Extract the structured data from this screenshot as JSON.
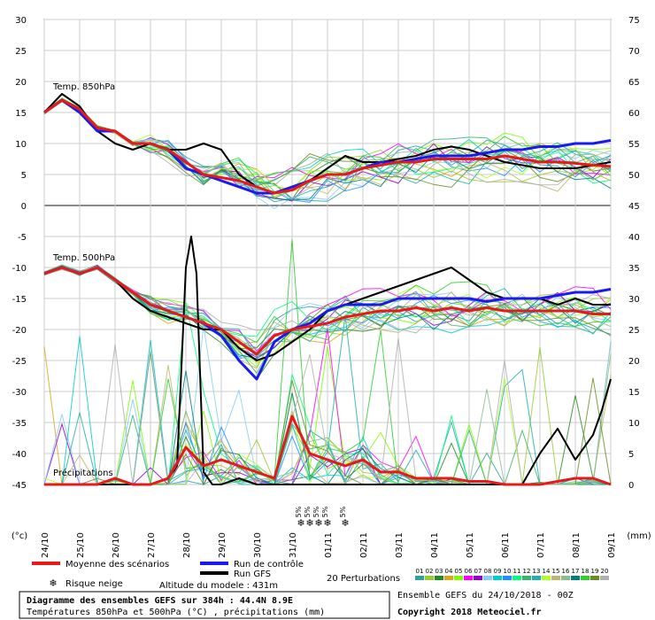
{
  "chart_data": {
    "type": "line",
    "y_left_ticks": [
      "30",
      "25",
      "20",
      "15",
      "10",
      "5",
      "0",
      "-5",
      "-10",
      "-15",
      "-20",
      "-25",
      "-30",
      "-35",
      "-40",
      "-45"
    ],
    "y_right_ticks": [
      "75",
      "70",
      "65",
      "60",
      "55",
      "50",
      "45",
      "40",
      "35",
      "30",
      "25",
      "20",
      "15",
      "10",
      "5",
      "0"
    ],
    "ylim_left": [
      -45,
      30
    ],
    "ylim_right": [
      0,
      75
    ],
    "y_left_unit": "(°c)",
    "y_right_unit": "(mm)",
    "x_ticks": [
      "24/10",
      "25/10",
      "26/10",
      "27/10",
      "28/10",
      "29/10",
      "30/10",
      "31/10",
      "01/11",
      "02/11",
      "03/11",
      "04/11",
      "05/11",
      "06/11",
      "07/11",
      "08/11",
      "09/11"
    ],
    "x_day_range": [
      0,
      16
    ],
    "panel_labels": {
      "t850": "Temp. 850hPa",
      "t500": "Temp. 500hPa",
      "precip": "Précipitations"
    },
    "snow_label": "5%",
    "snow_days": [
      7.25,
      7.5,
      7.75,
      8.0,
      8.5
    ],
    "series": [
      {
        "name": "Moyenne des scénarios",
        "color": "#e61a1a",
        "panel": "t850",
        "x": [
          0,
          0.5,
          1,
          1.5,
          2,
          2.5,
          3,
          3.5,
          4,
          4.5,
          5,
          5.5,
          6,
          6.5,
          7,
          7.5,
          8,
          8.5,
          9,
          9.5,
          10,
          10.5,
          11,
          11.5,
          12,
          12.5,
          13,
          13.5,
          14,
          14.5,
          15,
          15.5,
          16
        ],
        "values": [
          15,
          17,
          15.5,
          12.5,
          12,
          10,
          10,
          9,
          7,
          5,
          4.5,
          4,
          3,
          2,
          2.5,
          4,
          5,
          5,
          6,
          6.5,
          7,
          7,
          7.5,
          7.5,
          7.5,
          7.5,
          8,
          7.5,
          7,
          7,
          6.8,
          6.5,
          6.3
        ]
      },
      {
        "name": "Moyenne des scénarios",
        "color": "#e61a1a",
        "panel": "t500",
        "x": [
          0,
          0.5,
          1,
          1.5,
          2,
          2.5,
          3,
          3.5,
          4,
          4.5,
          5,
          5.5,
          6,
          6.5,
          7,
          7.5,
          8,
          8.5,
          9,
          9.5,
          10,
          10.5,
          11,
          11.5,
          12,
          12.5,
          13,
          13.5,
          14,
          14.5,
          15,
          15.5,
          16
        ],
        "values": [
          -11,
          -10,
          -11,
          -10,
          -12,
          -14,
          -16,
          -17,
          -18,
          -19,
          -20,
          -22,
          -24,
          -21,
          -20,
          -19.5,
          -19,
          -18,
          -17.5,
          -17,
          -17,
          -16.5,
          -17,
          -16.5,
          -17,
          -16.5,
          -17,
          -17,
          -17,
          -17,
          -17,
          -17.5,
          -17.5
        ]
      },
      {
        "name": "Moyenne des scénarios",
        "color": "#e61a1a",
        "panel": "precip",
        "x": [
          0,
          0.5,
          1,
          1.5,
          2,
          2.5,
          3,
          3.5,
          4,
          4.5,
          5,
          5.5,
          6,
          6.5,
          7,
          7.5,
          8,
          8.5,
          9,
          9.5,
          10,
          10.5,
          11,
          11.5,
          12,
          12.5,
          13,
          13.5,
          14,
          14.5,
          15,
          15.5,
          16
        ],
        "values": [
          0,
          0,
          0,
          0,
          1,
          0,
          0,
          1,
          6,
          3,
          4,
          3,
          2,
          1,
          11,
          5,
          4,
          3,
          4,
          2,
          2,
          1,
          1,
          1,
          0.5,
          0.5,
          0,
          0,
          0,
          0.5,
          1,
          1,
          0
        ]
      },
      {
        "name": "Run de contrôle",
        "color": "#1a1aee",
        "panel": "t850",
        "x": [
          0,
          0.5,
          1,
          1.5,
          2,
          2.5,
          3,
          3.5,
          4,
          4.5,
          5,
          5.5,
          6,
          6.5,
          7,
          7.5,
          8,
          8.5,
          9,
          9.5,
          10,
          10.5,
          11,
          11.5,
          12,
          12.5,
          13,
          13.5,
          14,
          14.5,
          15,
          15.5,
          16
        ],
        "values": [
          15,
          17,
          15,
          12,
          12,
          10,
          10,
          9,
          6,
          5,
          4,
          3,
          2,
          2,
          3,
          4,
          5,
          5,
          6,
          7,
          7,
          7.5,
          8,
          8,
          8,
          8.5,
          9,
          9,
          9.5,
          9.5,
          10,
          10,
          10.5
        ]
      },
      {
        "name": "Run de contrôle",
        "color": "#1a1aee",
        "panel": "t500",
        "x": [
          0,
          0.5,
          1,
          1.5,
          2,
          2.5,
          3,
          3.5,
          4,
          4.5,
          5,
          5.5,
          6,
          6.5,
          7,
          7.5,
          8,
          8.5,
          9,
          9.5,
          10,
          10.5,
          11,
          11.5,
          12,
          12.5,
          13,
          13.5,
          14,
          14.5,
          15,
          15.5,
          16
        ],
        "values": [
          -11,
          -10,
          -11,
          -10,
          -12,
          -14,
          -16,
          -17,
          -18,
          -19,
          -21,
          -25,
          -28,
          -22,
          -20,
          -19,
          -17,
          -16,
          -16,
          -16,
          -15,
          -15,
          -15,
          -15,
          -15,
          -15.5,
          -15,
          -15,
          -15,
          -14.5,
          -14,
          -14,
          -13.5
        ]
      },
      {
        "name": "Run GFS",
        "color": "#000000",
        "panel": "t850",
        "x": [
          0,
          0.5,
          1,
          1.5,
          2,
          2.5,
          3,
          3.5,
          4,
          4.5,
          5,
          5.5,
          6,
          6.5,
          7,
          7.5,
          8,
          8.5,
          9,
          9.5,
          10,
          10.5,
          11,
          11.5,
          12,
          12.5,
          13,
          13.5,
          14,
          14.5,
          15,
          15.5,
          16
        ],
        "values": [
          15,
          18,
          16,
          12,
          10,
          9,
          10,
          9,
          9,
          10,
          9,
          5,
          3,
          2,
          3,
          4,
          6,
          8,
          7,
          7,
          7.5,
          8,
          9,
          9.5,
          9,
          8,
          7,
          6.5,
          6,
          6,
          6,
          6.5,
          7
        ]
      },
      {
        "name": "Run GFS",
        "color": "#000000",
        "panel": "t500",
        "x": [
          0,
          0.5,
          1,
          1.5,
          2,
          2.5,
          3,
          3.5,
          4,
          4.5,
          5,
          5.5,
          6,
          6.5,
          7,
          7.5,
          8,
          8.5,
          9,
          9.5,
          10,
          10.5,
          11,
          11.5,
          12,
          12.5,
          13,
          13.5,
          14,
          14.5,
          15,
          15.5,
          16
        ],
        "values": [
          -11,
          -10,
          -11,
          -10,
          -12,
          -15,
          -17,
          -18,
          -19,
          -20,
          -20,
          -23,
          -25,
          -24,
          -22,
          -20,
          -17,
          -16,
          -15,
          -14,
          -13,
          -12,
          -11,
          -10,
          -12,
          -14,
          -15,
          -15,
          -15,
          -16,
          -15,
          -16,
          -16
        ]
      },
      {
        "name": "Run GFS",
        "color": "#000000",
        "panel": "precip",
        "x": [
          0,
          0.5,
          1,
          1.5,
          2,
          2.5,
          3,
          3.5,
          3.75,
          4,
          4.15,
          4.3,
          4.5,
          4.75,
          5,
          5.5,
          6,
          7,
          8,
          9,
          10,
          11,
          12,
          13,
          13.5,
          14,
          14.5,
          15,
          15.5,
          15.75,
          16
        ],
        "values": [
          0,
          0,
          0,
          0,
          0,
          0,
          0,
          1,
          3,
          35,
          40,
          34,
          2,
          0,
          0,
          1,
          0,
          0,
          0,
          0,
          0,
          0,
          0,
          0,
          0,
          5,
          9,
          4,
          8,
          12,
          17
        ]
      }
    ],
    "legend": {
      "mean": "Moyenne des scénarios",
      "control": "Run de contrôle",
      "gfs": "Run GFS",
      "perturbations": "20 Perturbations",
      "snow_risk": "Risque neige",
      "altitude": "Altitude du modele : 431m",
      "pert_numbers": [
        "01",
        "02",
        "03",
        "04",
        "05",
        "06",
        "07",
        "08",
        "09",
        "10",
        "11",
        "12",
        "13",
        "14",
        "15",
        "16",
        "17",
        "18",
        "19",
        "20"
      ]
    },
    "footer": {
      "title": "Diagramme des ensembles GEFS sur 384h : 44.4N 8.9E",
      "subtitle": "Températures 850hPa et 500hPa (°C) , précipitations (mm)",
      "run_info": "Ensemble GEFS du 24/10/2018 - 00Z",
      "copyright": "Copyright 2018 Meteociel.fr"
    },
    "colors": {
      "mean": "#e61a1a",
      "control": "#1a1aee",
      "gfs": "#000000",
      "grid": "#cccccc",
      "zero_line": "#888888",
      "snow": "#4fb4e6",
      "perturbations": [
        "#30a0a0",
        "#9acd32",
        "#228b22",
        "#daa520",
        "#7fff00",
        "#ff00ff",
        "#9400d3",
        "#87cefa",
        "#00ced1",
        "#1e90ff",
        "#00ff7f",
        "#3cb371",
        "#20b2aa",
        "#adff2f",
        "#bdb76b",
        "#8fbc8f",
        "#008080",
        "#32cd32",
        "#6b8e23",
        "#b0b0b0"
      ]
    }
  }
}
